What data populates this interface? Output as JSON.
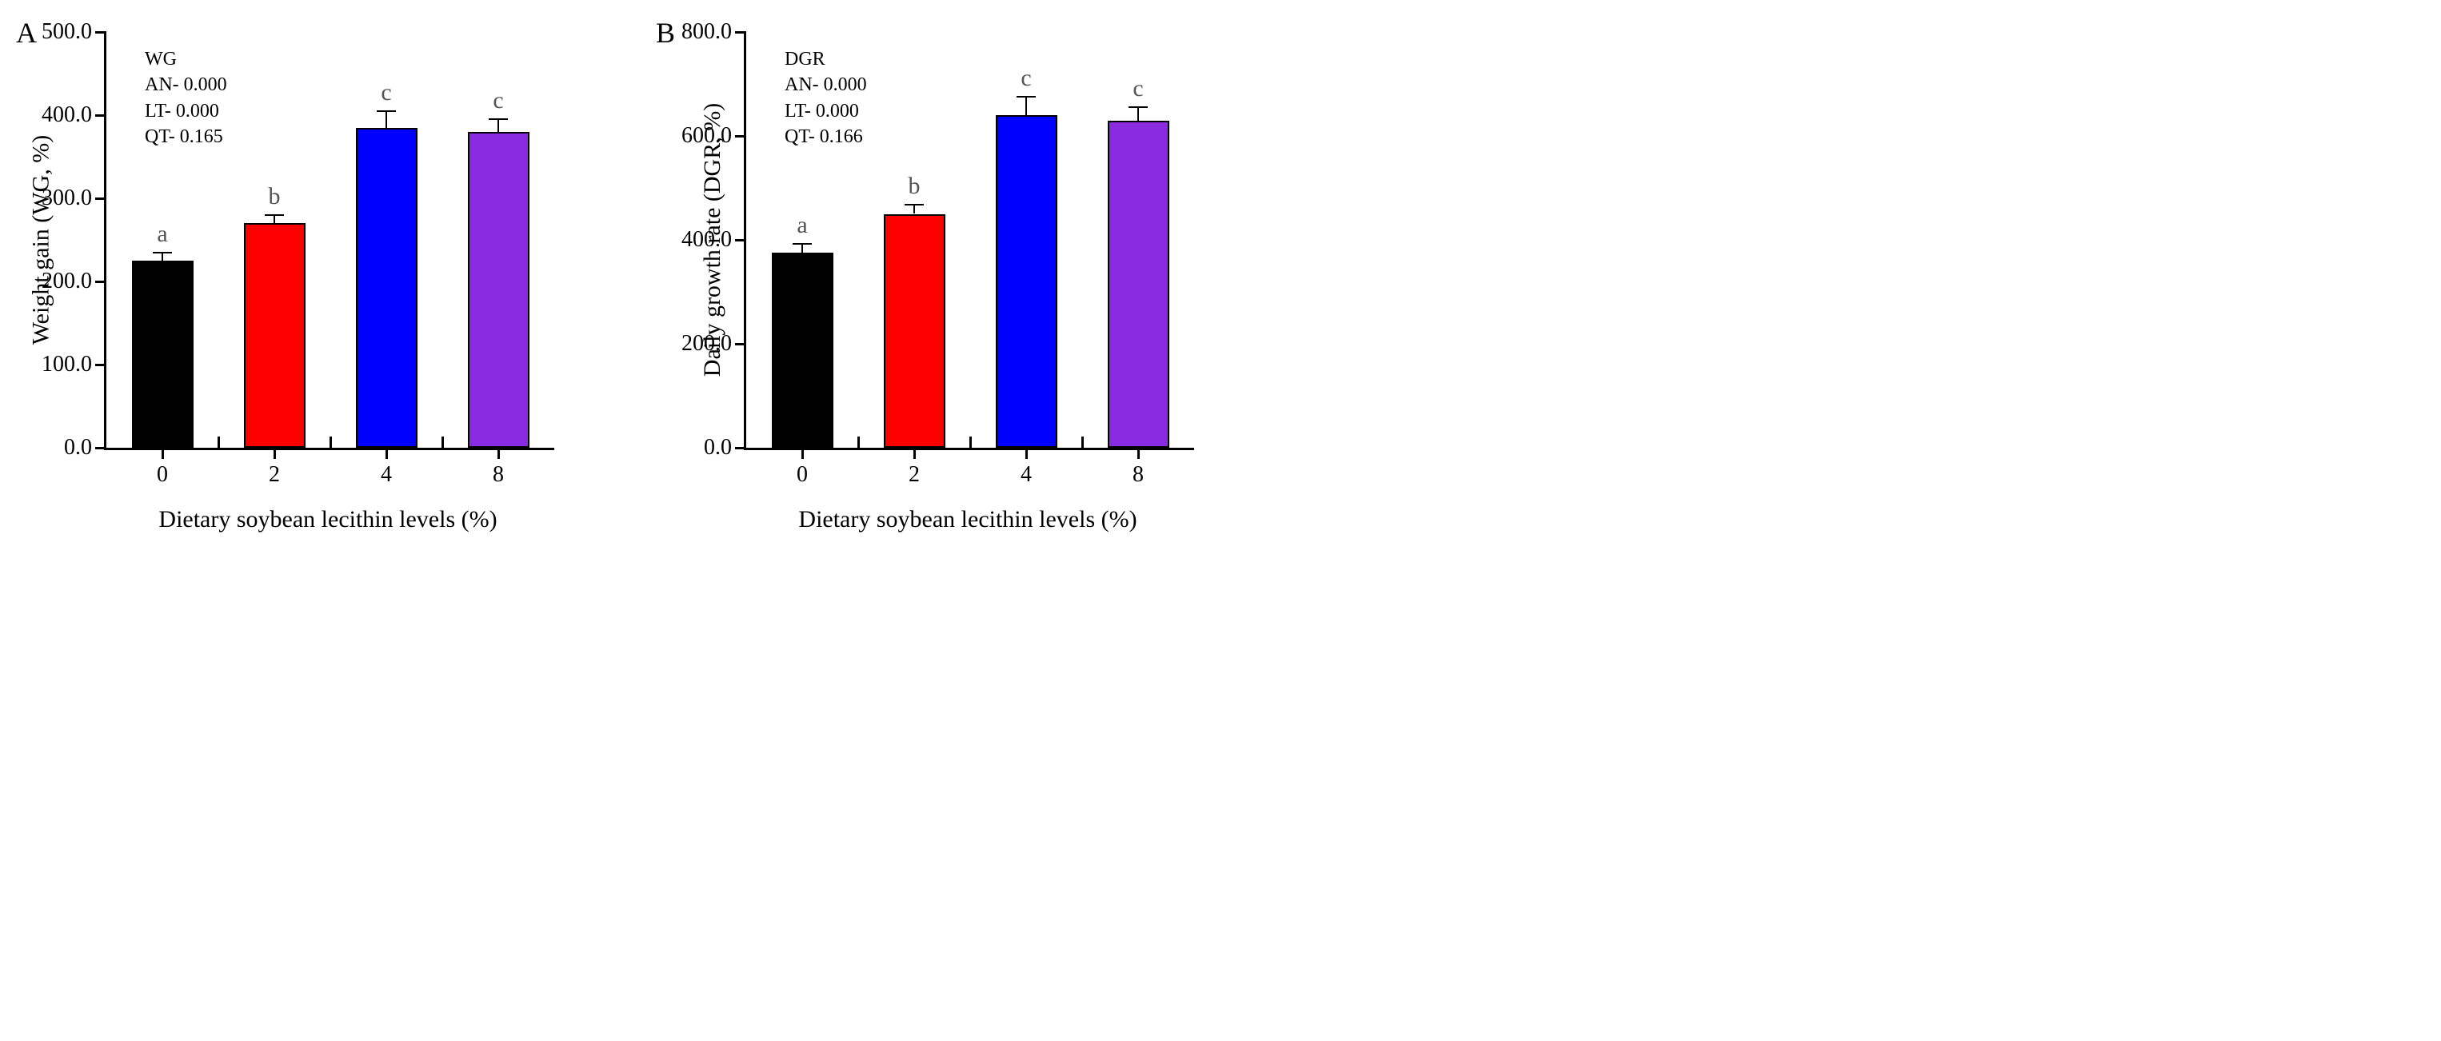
{
  "panels": [
    {
      "label": "A",
      "ylabel": "Weight gain (WG, %)",
      "xlabel": "Dietary soybean lecithin levels (%)",
      "ylim": [
        0,
        500
      ],
      "ytick_step": 100,
      "yticks": [
        "0.0",
        "100.0",
        "200.0",
        "300.0",
        "400.0",
        "500.0"
      ],
      "categories": [
        "0",
        "2",
        "4",
        "8"
      ],
      "values": [
        225,
        270,
        385,
        380
      ],
      "errors": [
        10,
        10,
        20,
        15
      ],
      "bar_colors": [
        "#000000",
        "#ff0000",
        "#0000ff",
        "#8a2be2"
      ],
      "bar_width": 0.55,
      "letters": [
        "a",
        "b",
        "c",
        "c"
      ],
      "annot_lines": [
        "WG",
        "AN- 0.000",
        "LT- 0.000",
        "QT- 0.165"
      ],
      "axis_color": "#000000",
      "background_color": "#ffffff",
      "label_fontsize": 30,
      "tick_fontsize": 28,
      "letter_fontsize": 30,
      "annot_fontsize": 24
    },
    {
      "label": "B",
      "ylabel": "Daily growth rate (DGR, %)",
      "xlabel": "Dietary soybean lecithin levels (%)",
      "ylim": [
        0,
        800
      ],
      "ytick_step": 200,
      "yticks": [
        "0.0",
        "200.0",
        "400.0",
        "600.0",
        "800.0"
      ],
      "categories": [
        "0",
        "2",
        "4",
        "8"
      ],
      "values": [
        375,
        450,
        640,
        630
      ],
      "errors": [
        18,
        18,
        35,
        25
      ],
      "bar_colors": [
        "#000000",
        "#ff0000",
        "#0000ff",
        "#8a2be2"
      ],
      "bar_width": 0.55,
      "letters": [
        "a",
        "b",
        "c",
        "c"
      ],
      "annot_lines": [
        "DGR",
        "AN- 0.000",
        "LT- 0.000",
        "QT- 0.166"
      ],
      "axis_color": "#000000",
      "background_color": "#ffffff",
      "label_fontsize": 30,
      "tick_fontsize": 28,
      "letter_fontsize": 30,
      "annot_fontsize": 24
    }
  ]
}
